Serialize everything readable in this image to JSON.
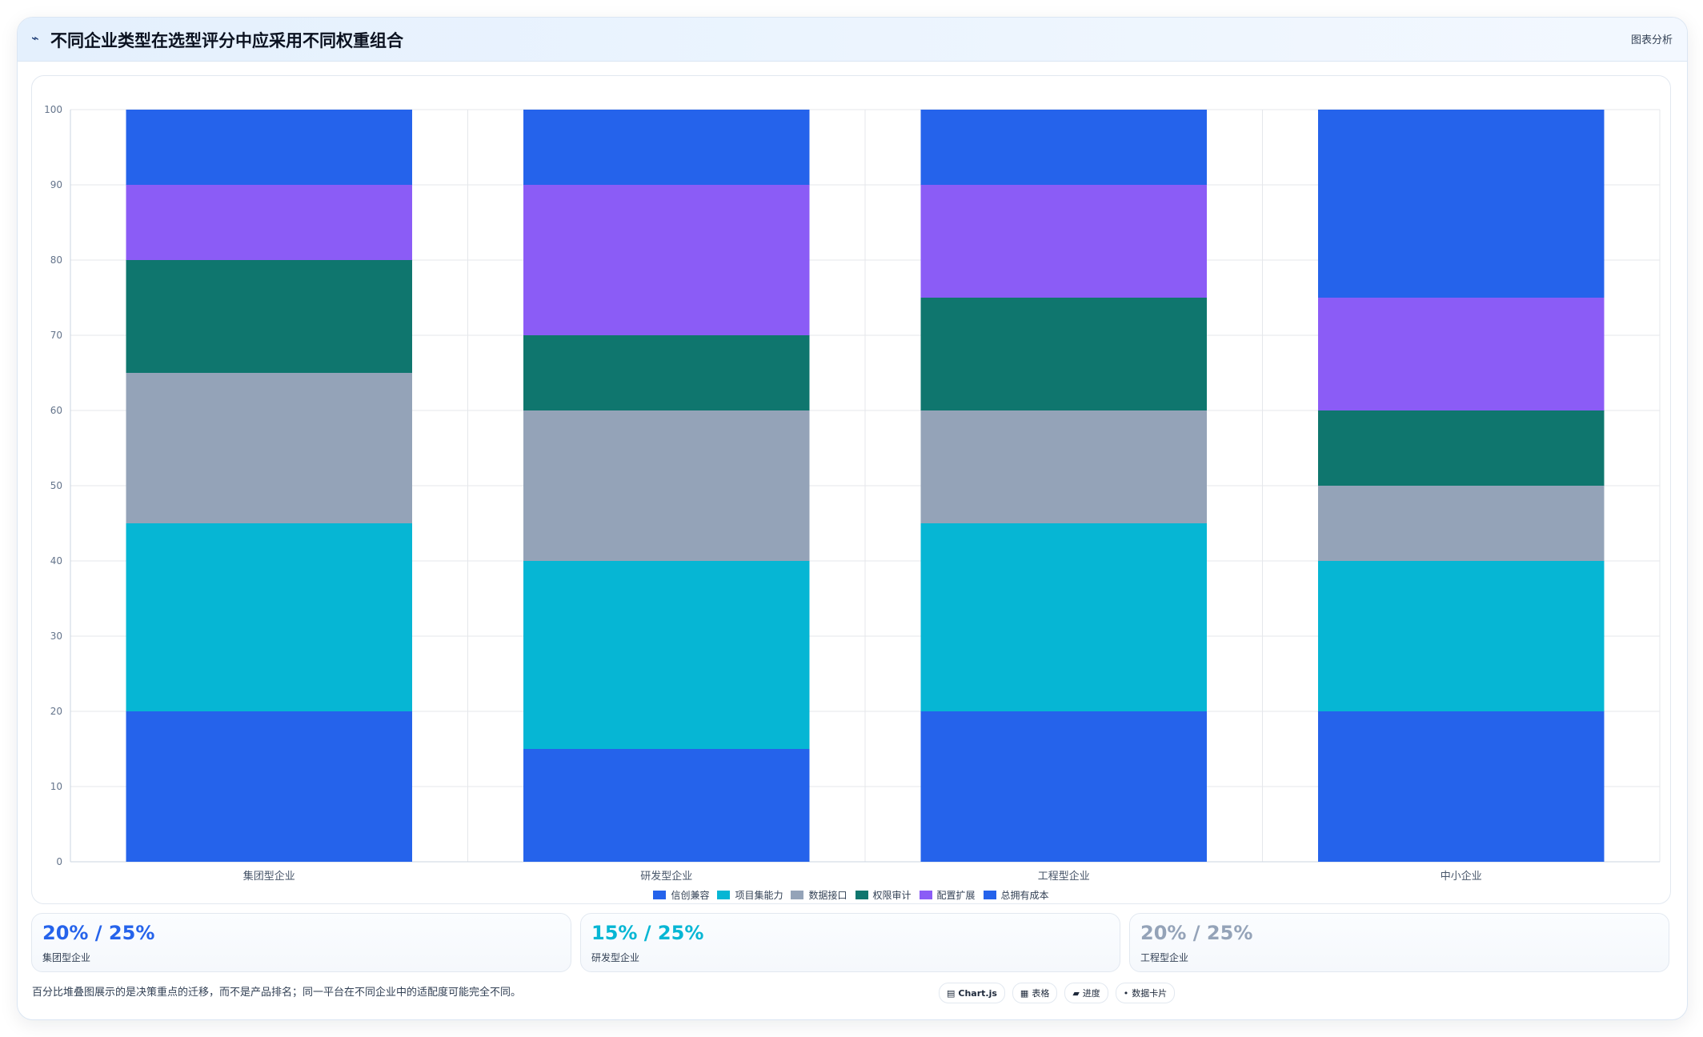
{
  "header": {
    "icon": "chart-line-icon",
    "title": "不同企业类型在选型评分中应采用不同权重组合",
    "right_label": "图表分析"
  },
  "chart_data": {
    "type": "bar",
    "stacked": true,
    "categories": [
      "集团型企业",
      "研发型企业",
      "工程型企业",
      "中小企业"
    ],
    "series": [
      {
        "name": "信创兼容",
        "color": "#2563eb",
        "values": [
          20,
          15,
          20,
          20
        ]
      },
      {
        "name": "项目集能力",
        "color": "#06b6d4",
        "values": [
          25,
          25,
          25,
          20
        ]
      },
      {
        "name": "数据接口",
        "color": "#94a3b8",
        "values": [
          20,
          20,
          15,
          10
        ]
      },
      {
        "name": "权限审计",
        "color": "#0f766e",
        "values": [
          15,
          10,
          15,
          10
        ]
      },
      {
        "name": "配置扩展",
        "color": "#8b5cf6",
        "values": [
          10,
          20,
          15,
          15
        ]
      },
      {
        "name": "总拥有成本",
        "color": "#2563eb",
        "values": [
          10,
          10,
          10,
          25
        ]
      }
    ],
    "ylim": [
      0,
      100
    ],
    "yticks": [
      0,
      10,
      20,
      30,
      40,
      50,
      60,
      70,
      80,
      90,
      100
    ],
    "grid": true,
    "legend_position": "bottom"
  },
  "cards": [
    {
      "value": "20% / 25%",
      "label": "集团型企业",
      "color": "#2563eb"
    },
    {
      "value": "15% / 25%",
      "label": "研发型企业",
      "color": "#06b6d4"
    },
    {
      "value": "20% / 25%",
      "label": "工程型企业",
      "color": "#94a3b8"
    }
  ],
  "footer": {
    "note": "百分比堆叠图展示的是决策重点的迁移，而不是产品排名；同一平台在不同企业中的适配度可能完全不同。",
    "chips": [
      {
        "icon": "chart-icon",
        "label": "Chart.js"
      },
      {
        "icon": "table-icon",
        "label": "表格"
      },
      {
        "icon": "progress-icon",
        "label": "进度"
      },
      {
        "icon": "card-icon",
        "label": "数据卡片"
      }
    ]
  }
}
